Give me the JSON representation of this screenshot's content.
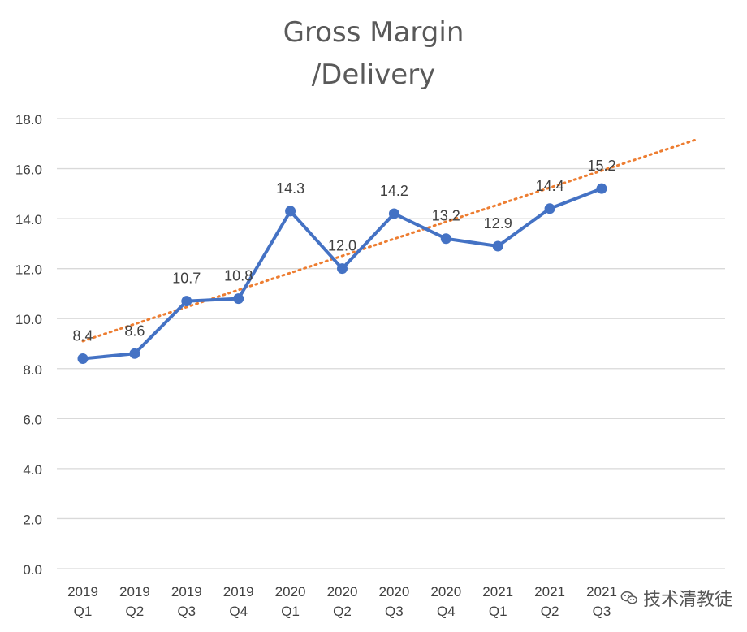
{
  "chart_data": {
    "type": "line",
    "title_lines": [
      "Gross Margin",
      "/Delivery"
    ],
    "categories": [
      [
        "2019",
        "Q1"
      ],
      [
        "2019",
        "Q2"
      ],
      [
        "2019",
        "Q3"
      ],
      [
        "2019",
        "Q4"
      ],
      [
        "2020",
        "Q1"
      ],
      [
        "2020",
        "Q2"
      ],
      [
        "2020",
        "Q3"
      ],
      [
        "2020",
        "Q4"
      ],
      [
        "2021",
        "Q1"
      ],
      [
        "2021",
        "Q2"
      ],
      [
        "2021",
        "Q3"
      ]
    ],
    "series": [
      {
        "values": [
          8.4,
          8.6,
          10.7,
          10.8,
          14.3,
          12.0,
          14.2,
          13.2,
          12.9,
          14.4,
          15.2
        ],
        "data_labels": [
          "8.4",
          "8.6",
          "10.7",
          "10.8",
          "14.3",
          "12.0",
          "14.2",
          "13.2",
          "12.9",
          "14.4",
          "15.2"
        ],
        "color": "#4472C4"
      }
    ],
    "trendline": {
      "type": "linear",
      "color": "#ED7D31",
      "style": "dotted",
      "start_y": 9.1,
      "end_y": 16.6,
      "extends_past_last": true
    },
    "ylim": [
      0,
      18
    ],
    "yticks": [
      "0.0",
      "2.0",
      "4.0",
      "6.0",
      "8.0",
      "10.0",
      "12.0",
      "14.0",
      "16.0",
      "18.0"
    ],
    "grid": true,
    "legend": "none",
    "gridline_color": "#d9d9d9",
    "axis_text_color": "#404040"
  },
  "watermark": {
    "text": "技术清教徒",
    "icon": "wechat-icon"
  }
}
